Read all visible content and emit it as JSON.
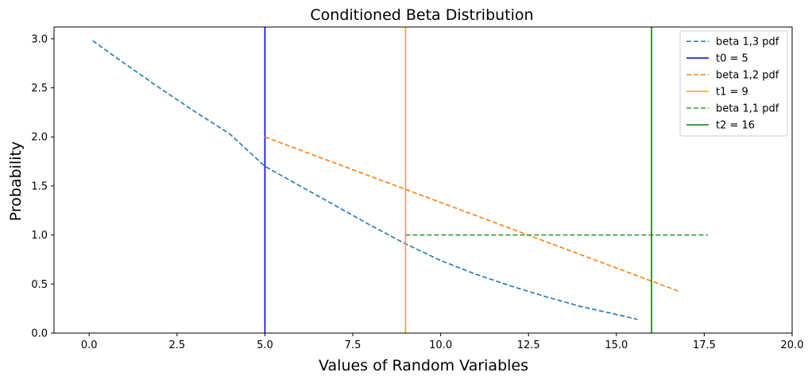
{
  "chart_data": {
    "type": "line",
    "title": "Conditioned Beta Distribution",
    "xlabel": "Values of Random Variables",
    "ylabel": "Probability",
    "xlim": [
      -1,
      20
    ],
    "ylim": [
      0,
      3.12
    ],
    "xticks": [
      "0.0",
      "2.5",
      "5.0",
      "7.5",
      "10.0",
      "12.5",
      "15.0",
      "17.5",
      "20.0"
    ],
    "yticks": [
      "0.0",
      "0.5",
      "1.0",
      "1.5",
      "2.0",
      "2.5",
      "3.0"
    ],
    "grid": false,
    "legend_position": "top-right",
    "series": [
      {
        "name": "beta 1,3 pdf",
        "style": "dashed",
        "color": "#1f77b4",
        "x": [
          0.1,
          1.0,
          2.0,
          3.0,
          4.0,
          5.0,
          6.0,
          7.0,
          8.0,
          9.0,
          10.0,
          11.0,
          12.0,
          13.0,
          14.0,
          15.0,
          15.6
        ],
        "y": [
          2.98,
          2.75,
          2.5,
          2.26,
          2.03,
          1.7,
          1.5,
          1.3,
          1.1,
          0.91,
          0.74,
          0.6,
          0.48,
          0.37,
          0.27,
          0.19,
          0.14
        ]
      },
      {
        "name": "t0 = 5",
        "style": "vline",
        "color": "#0000ff",
        "x": [
          5,
          5
        ],
        "y": [
          0,
          3.12
        ]
      },
      {
        "name": "beta 1,2 pdf",
        "style": "dashed",
        "color": "#ff7f0e",
        "x": [
          5.0,
          16.75
        ],
        "y": [
          2.0,
          0.43
        ]
      },
      {
        "name": "t1 = 9",
        "style": "vline",
        "color": "#ffa500",
        "x": [
          9,
          9
        ],
        "y": [
          0,
          3.12
        ]
      },
      {
        "name": "beta 1,1 pdf",
        "style": "dashed",
        "color": "#2ca02c",
        "x": [
          9.0,
          17.6
        ],
        "y": [
          1.0,
          1.0
        ]
      },
      {
        "name": "t2 = 16",
        "style": "vline",
        "color": "#008000",
        "x": [
          16,
          16
        ],
        "y": [
          0,
          3.12
        ]
      }
    ]
  }
}
